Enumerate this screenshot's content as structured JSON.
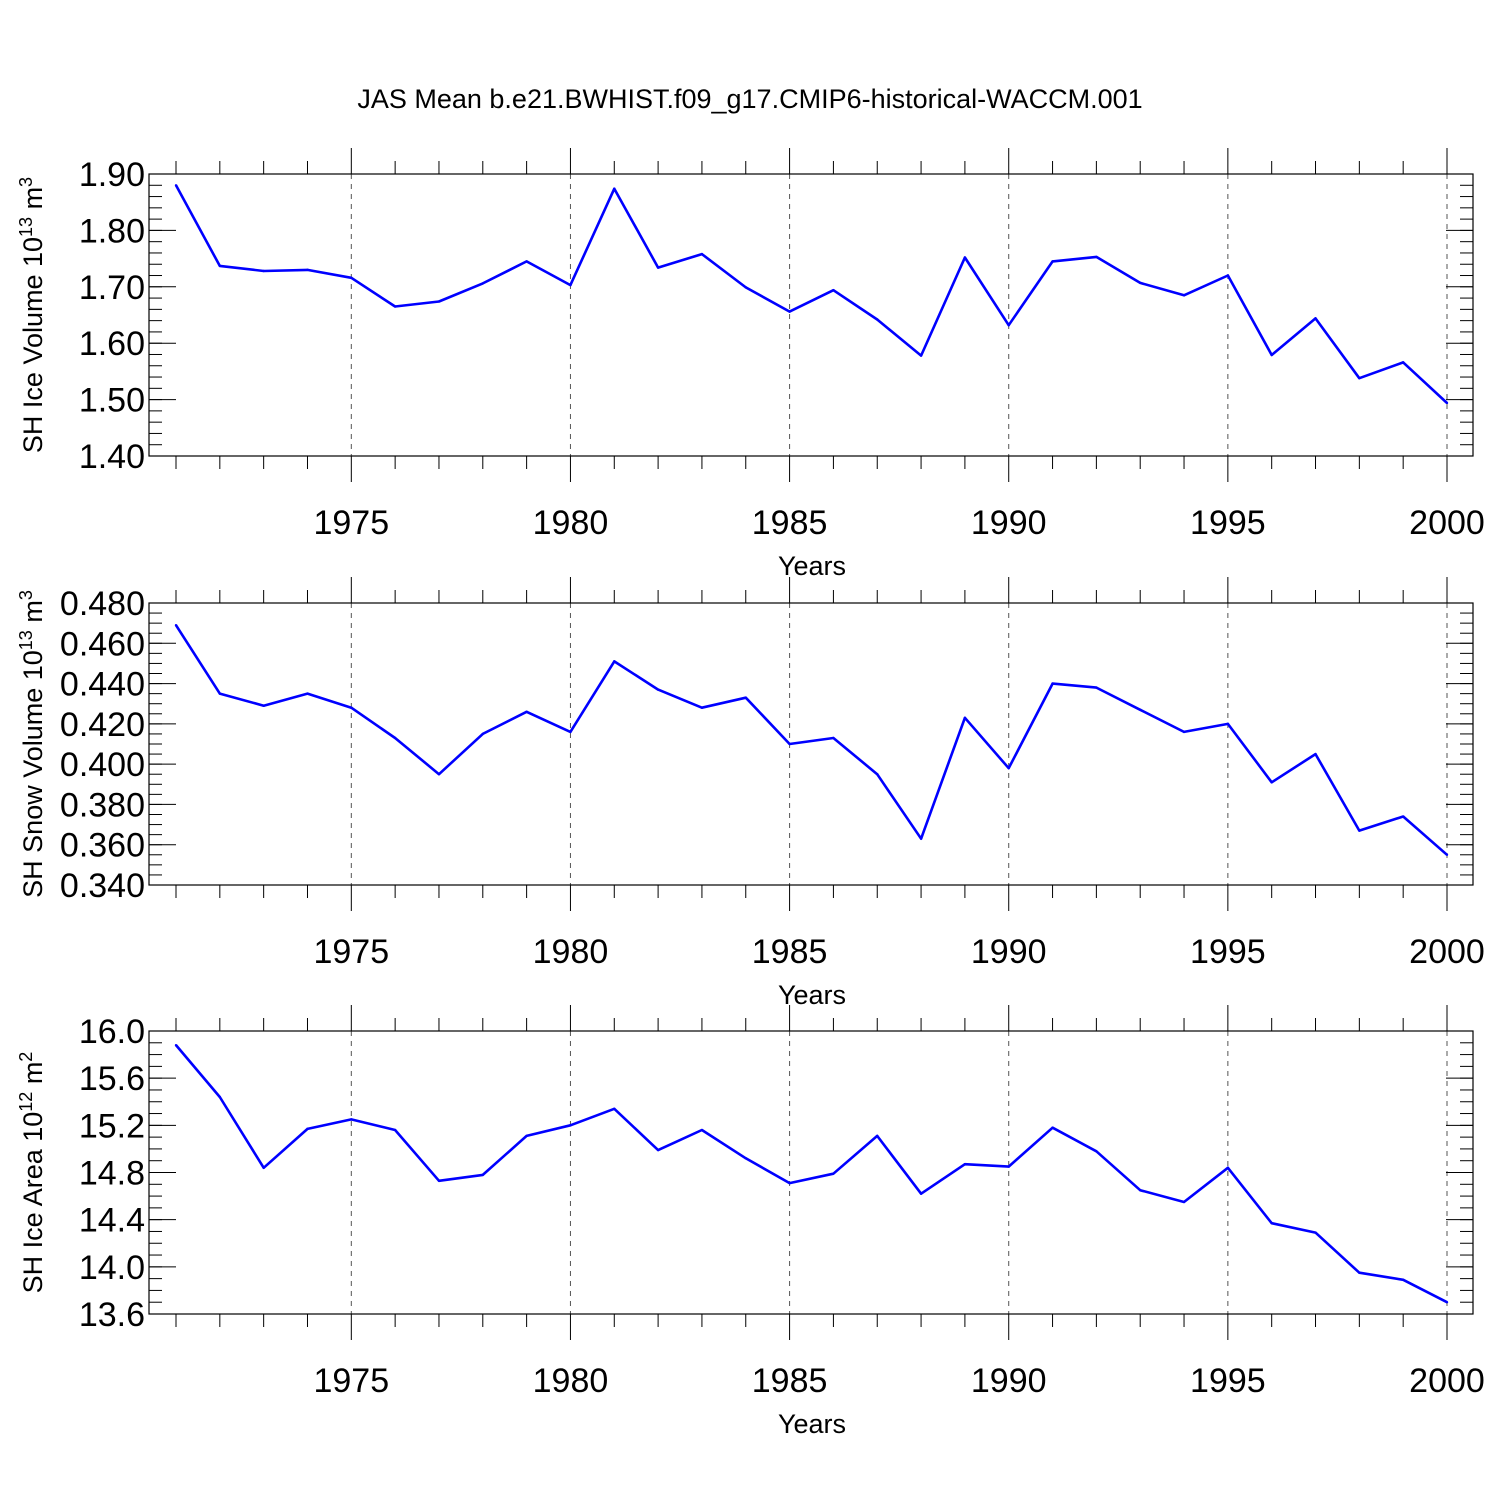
{
  "figure": {
    "title": "JAS Mean b.e21.BWHIST.f09_g17.CMIP6-historical-WACCM.001"
  },
  "colors": {
    "line": "#0000ff",
    "axis": "#000000",
    "grid": "#555555"
  },
  "chart_data": [
    {
      "type": "line",
      "title": "",
      "xlabel": "Years",
      "ylabel_main": "SH Ice Volume 10",
      "ylabel_exp1": "13",
      "ylabel_unit": " m",
      "ylabel_exp2": "3",
      "xlim": [
        1971,
        2000
      ],
      "ylim": [
        1.4,
        1.9
      ],
      "yticks": [
        "1.40",
        "1.50",
        "1.60",
        "1.70",
        "1.80",
        "1.90"
      ],
      "yminor": 0.02,
      "xticks": [
        "1975",
        "1980",
        "1985",
        "1990",
        "1995",
        "2000"
      ],
      "grid": "vertical dashed at major x ticks",
      "x": [
        1971,
        1972,
        1973,
        1974,
        1975,
        1976,
        1977,
        1978,
        1979,
        1980,
        1981,
        1982,
        1983,
        1984,
        1985,
        1986,
        1987,
        1988,
        1989,
        1990,
        1991,
        1992,
        1993,
        1994,
        1995,
        1996,
        1997,
        1998,
        1999,
        2000
      ],
      "series": [
        {
          "values": [
            1.88,
            1.737,
            1.728,
            1.73,
            1.716,
            1.665,
            1.674,
            1.706,
            1.745,
            1.703,
            1.874,
            1.734,
            1.758,
            1.699,
            1.656,
            1.694,
            1.642,
            1.578,
            1.752,
            1.632,
            1.745,
            1.753,
            1.707,
            1.685,
            1.72,
            1.579,
            1.644,
            1.538,
            1.566,
            1.494
          ]
        }
      ]
    },
    {
      "type": "line",
      "title": "",
      "xlabel": "Years",
      "ylabel_main": "SH Snow Volume 10",
      "ylabel_exp1": "13",
      "ylabel_unit": " m",
      "ylabel_exp2": "3",
      "xlim": [
        1971,
        2000
      ],
      "ylim": [
        0.34,
        0.48
      ],
      "yticks": [
        "0.340",
        "0.360",
        "0.380",
        "0.400",
        "0.420",
        "0.440",
        "0.460",
        "0.480"
      ],
      "yminor": 0.005,
      "xticks": [
        "1975",
        "1980",
        "1985",
        "1990",
        "1995",
        "2000"
      ],
      "grid": "vertical dashed at major x ticks",
      "x": [
        1971,
        1972,
        1973,
        1974,
        1975,
        1976,
        1977,
        1978,
        1979,
        1980,
        1981,
        1982,
        1983,
        1984,
        1985,
        1986,
        1987,
        1988,
        1989,
        1990,
        1991,
        1992,
        1993,
        1994,
        1995,
        1996,
        1997,
        1998,
        1999,
        2000
      ],
      "series": [
        {
          "values": [
            0.469,
            0.435,
            0.429,
            0.435,
            0.428,
            0.413,
            0.395,
            0.415,
            0.426,
            0.416,
            0.451,
            0.437,
            0.428,
            0.433,
            0.41,
            0.413,
            0.395,
            0.363,
            0.423,
            0.398,
            0.44,
            0.438,
            0.427,
            0.416,
            0.42,
            0.391,
            0.405,
            0.367,
            0.374,
            0.355
          ]
        }
      ]
    },
    {
      "type": "line",
      "title": "",
      "xlabel": "Years",
      "ylabel_main": "SH Ice Area 10",
      "ylabel_exp1": "12",
      "ylabel_unit": " m",
      "ylabel_exp2": "2",
      "xlim": [
        1971,
        2000
      ],
      "ylim": [
        13.6,
        16.0
      ],
      "yticks": [
        "13.6",
        "14.0",
        "14.4",
        "14.8",
        "15.2",
        "15.6",
        "16.0"
      ],
      "yminor": 0.1,
      "xticks": [
        "1975",
        "1980",
        "1985",
        "1990",
        "1995",
        "2000"
      ],
      "grid": "vertical dashed at major x ticks",
      "x": [
        1971,
        1972,
        1973,
        1974,
        1975,
        1976,
        1977,
        1978,
        1979,
        1980,
        1981,
        1982,
        1983,
        1984,
        1985,
        1986,
        1987,
        1988,
        1989,
        1990,
        1991,
        1992,
        1993,
        1994,
        1995,
        1996,
        1997,
        1998,
        1999,
        2000
      ],
      "series": [
        {
          "values": [
            15.88,
            15.44,
            14.84,
            15.17,
            15.25,
            15.16,
            14.73,
            14.78,
            15.11,
            15.2,
            15.34,
            14.99,
            15.16,
            14.92,
            14.71,
            14.79,
            15.11,
            14.62,
            14.87,
            14.85,
            15.18,
            14.98,
            14.65,
            14.55,
            14.84,
            14.37,
            14.29,
            13.95,
            13.89,
            13.7
          ]
        }
      ]
    }
  ]
}
